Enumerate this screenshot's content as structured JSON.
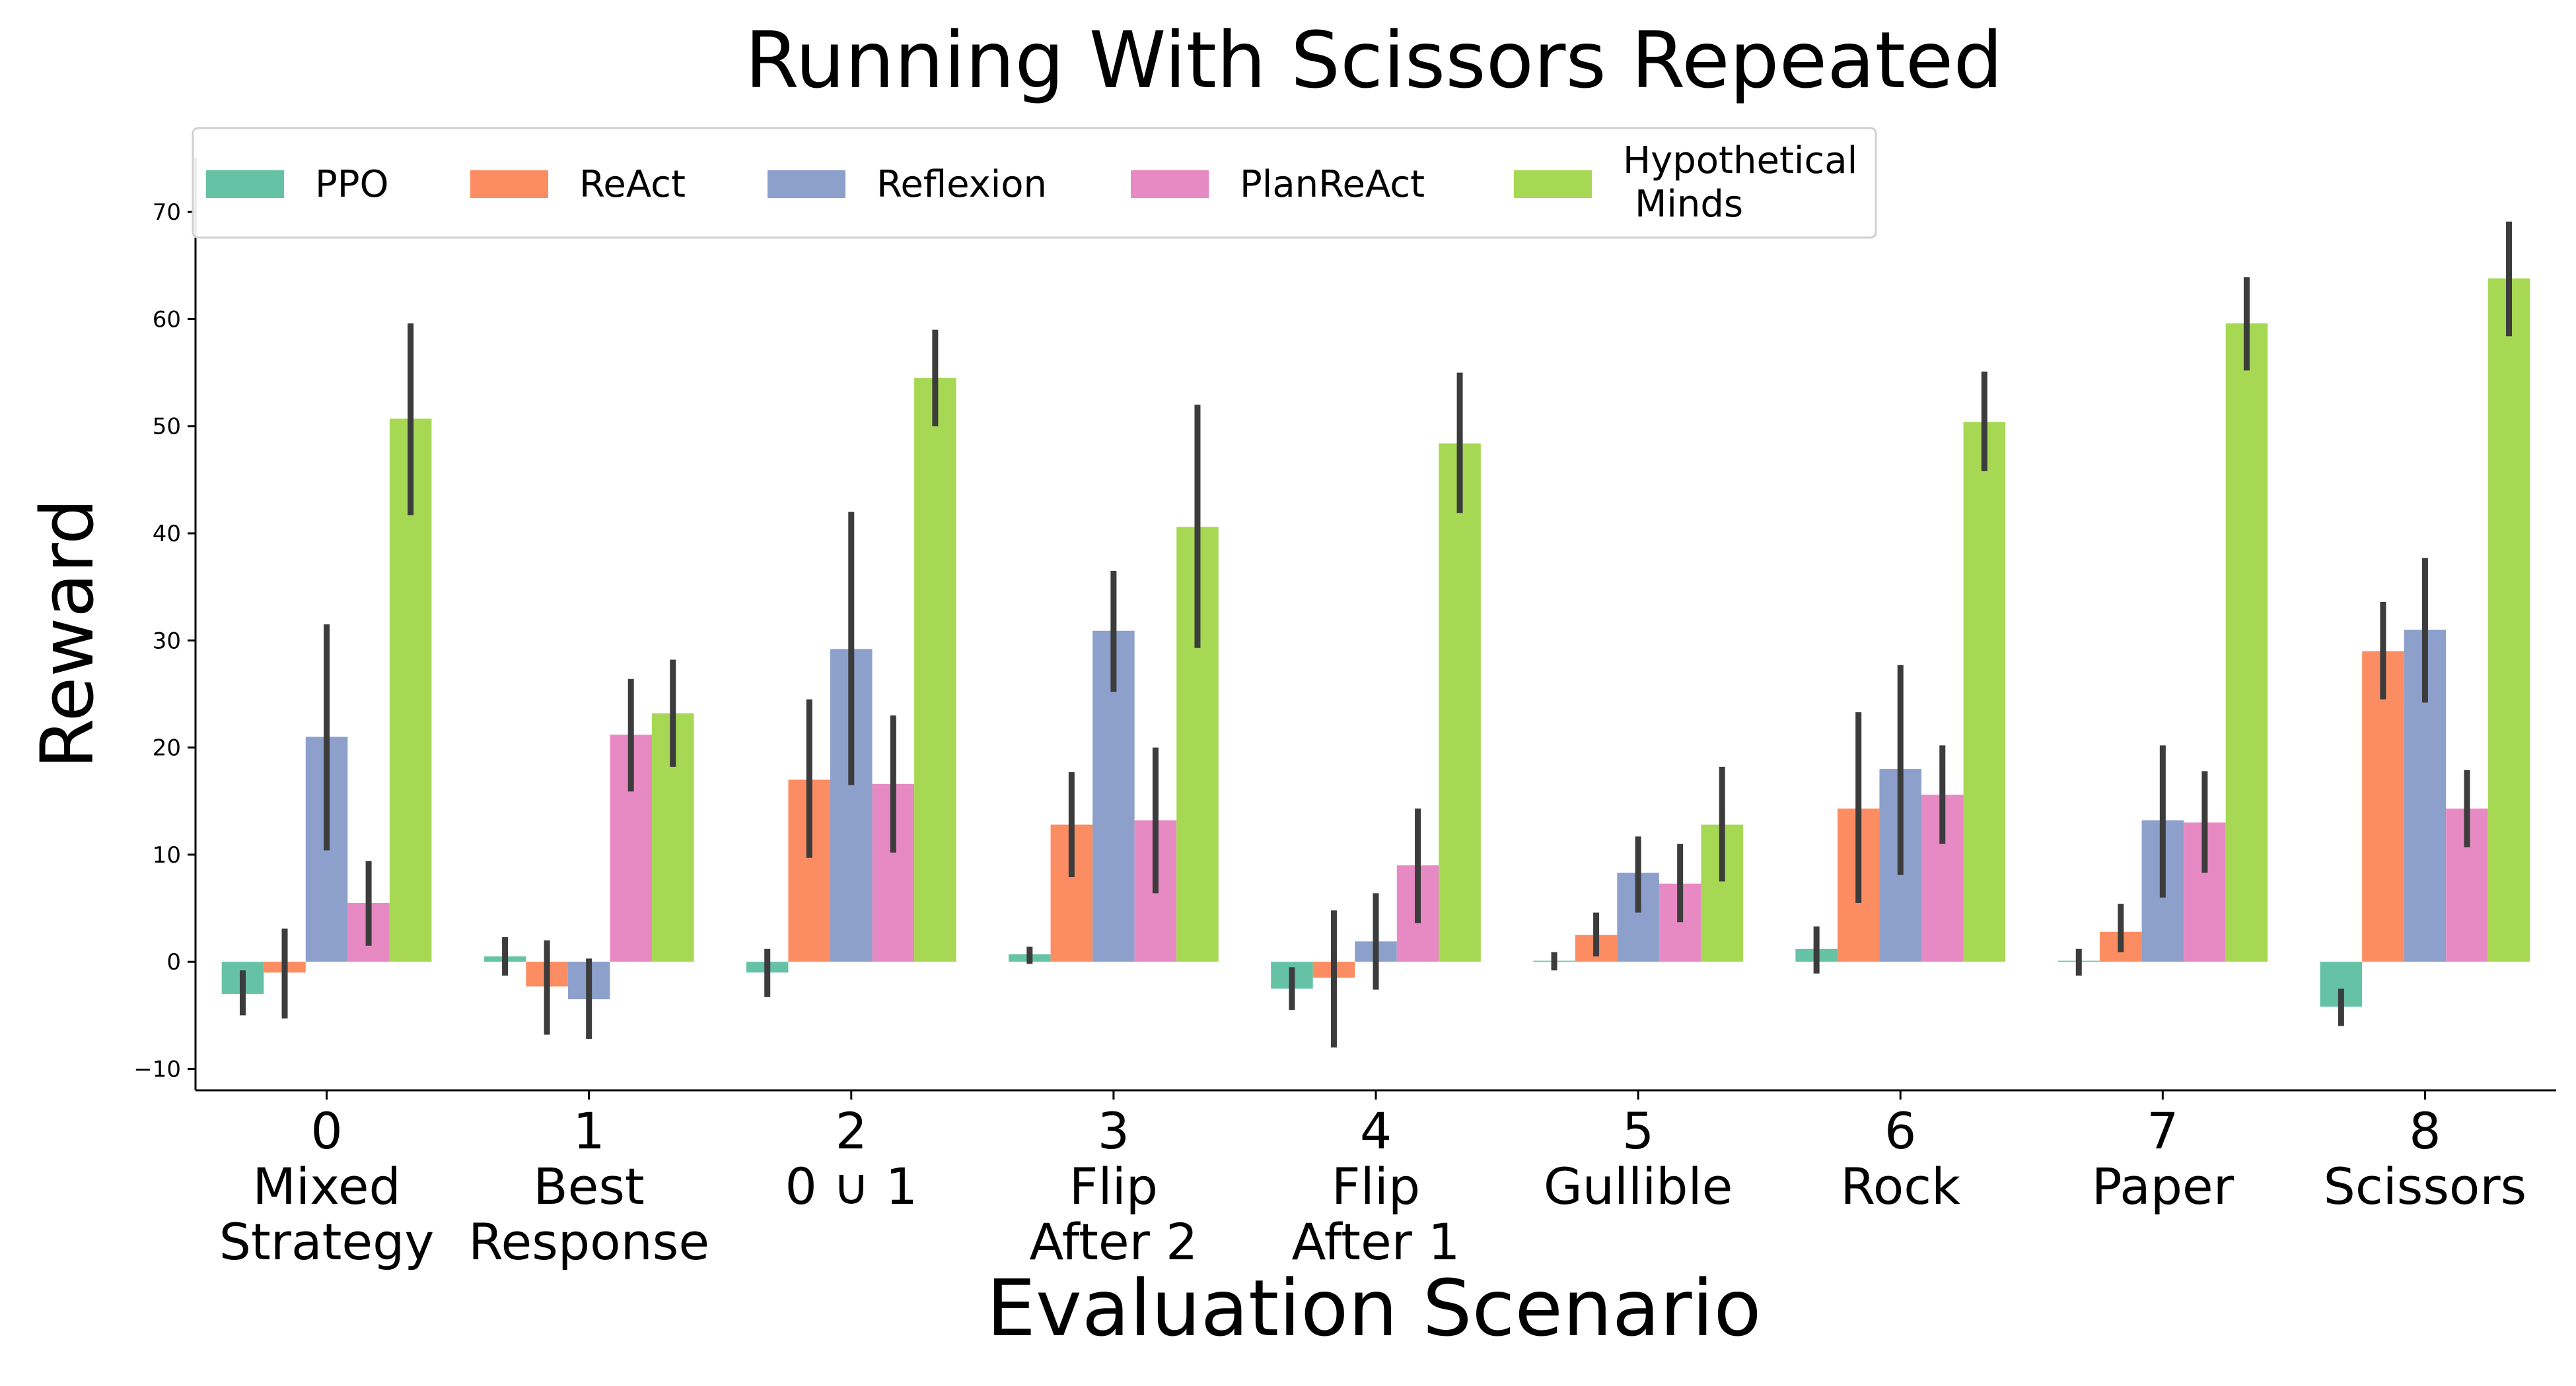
{
  "chart_data": {
    "type": "bar",
    "title": "Running With Scissors Repeated",
    "xlabel": "Evaluation Scenario",
    "ylabel": "Reward",
    "ylim": [
      -12,
      75
    ],
    "yticks": [
      -10,
      0,
      10,
      20,
      30,
      40,
      50,
      60,
      70
    ],
    "grid": false,
    "legend_position": "top-left",
    "categories": [
      {
        "index": "0",
        "lines": [
          "Mixed",
          "Strategy"
        ]
      },
      {
        "index": "1",
        "lines": [
          "Best",
          "Response"
        ]
      },
      {
        "index": "2",
        "lines": [
          "0 ∪ 1"
        ]
      },
      {
        "index": "3",
        "lines": [
          "Flip",
          "After 2"
        ]
      },
      {
        "index": "4",
        "lines": [
          "Flip",
          "After 1"
        ]
      },
      {
        "index": "5",
        "lines": [
          "Gullible"
        ]
      },
      {
        "index": "6",
        "lines": [
          "Rock"
        ]
      },
      {
        "index": "7",
        "lines": [
          "Paper"
        ]
      },
      {
        "index": "8",
        "lines": [
          "Scissors"
        ]
      }
    ],
    "series": [
      {
        "name": "PPO",
        "legend_lines": [
          "PPO"
        ],
        "color": "#66c2a5",
        "values": [
          -3,
          0.5,
          -1,
          0.7,
          -2.5,
          0.1,
          1.2,
          0.1,
          -4.2
        ],
        "ci": [
          [
            -5,
            -0.8
          ],
          [
            -1.3,
            2.3
          ],
          [
            -3.3,
            1.2
          ],
          [
            -0.2,
            1.4
          ],
          [
            -4.5,
            -0.5
          ],
          [
            -0.8,
            0.9
          ],
          [
            -1.1,
            3.3
          ],
          [
            -1.3,
            1.2
          ],
          [
            -6,
            -2.5
          ]
        ]
      },
      {
        "name": "ReAct",
        "legend_lines": [
          "ReAct"
        ],
        "color": "#fc8d62",
        "values": [
          -1,
          -2.3,
          17,
          12.8,
          -1.5,
          2.5,
          14.3,
          2.8,
          29
        ],
        "ci": [
          [
            -5.3,
            3.1
          ],
          [
            -6.8,
            2
          ],
          [
            9.7,
            24.5
          ],
          [
            7.9,
            17.7
          ],
          [
            -8,
            4.8
          ],
          [
            0.5,
            4.6
          ],
          [
            5.5,
            23.3
          ],
          [
            0.9,
            5.4
          ],
          [
            24.5,
            33.6
          ]
        ]
      },
      {
        "name": "Reflexion",
        "legend_lines": [
          "Reflexion"
        ],
        "color": "#8da0cb",
        "values": [
          21,
          -3.5,
          29.2,
          30.9,
          1.9,
          8.3,
          18,
          13.2,
          31
        ],
        "ci": [
          [
            10.4,
            31.5
          ],
          [
            -7.2,
            0.3
          ],
          [
            16.5,
            42
          ],
          [
            25.2,
            36.5
          ],
          [
            -2.6,
            6.4
          ],
          [
            4.6,
            11.7
          ],
          [
            8.1,
            27.7
          ],
          [
            6,
            20.2
          ],
          [
            24.2,
            37.7
          ]
        ]
      },
      {
        "name": "PlanReAct",
        "legend_lines": [
          "PlanReAct"
        ],
        "color": "#e78ac3",
        "values": [
          5.5,
          21.2,
          16.6,
          13.2,
          9,
          7.3,
          15.6,
          13,
          14.3
        ],
        "ci": [
          [
            1.5,
            9.4
          ],
          [
            15.9,
            26.4
          ],
          [
            10.2,
            23
          ],
          [
            6.4,
            20
          ],
          [
            3.6,
            14.3
          ],
          [
            3.7,
            11
          ],
          [
            11,
            20.2
          ],
          [
            8.3,
            17.8
          ],
          [
            10.7,
            17.9
          ]
        ]
      },
      {
        "name": "Hypothetical Minds",
        "legend_lines": [
          "Hypothetical",
          "Minds"
        ],
        "color": "#a6d854",
        "values": [
          50.7,
          23.2,
          54.5,
          40.6,
          48.4,
          12.8,
          50.4,
          59.6,
          63.8
        ],
        "ci": [
          [
            41.7,
            59.6
          ],
          [
            18.2,
            28.2
          ],
          [
            50,
            59
          ],
          [
            29.3,
            52
          ],
          [
            41.9,
            55
          ],
          [
            7.5,
            18.2
          ],
          [
            45.8,
            55.1
          ],
          [
            55.2,
            63.9
          ],
          [
            58.4,
            69.1
          ]
        ]
      }
    ]
  }
}
